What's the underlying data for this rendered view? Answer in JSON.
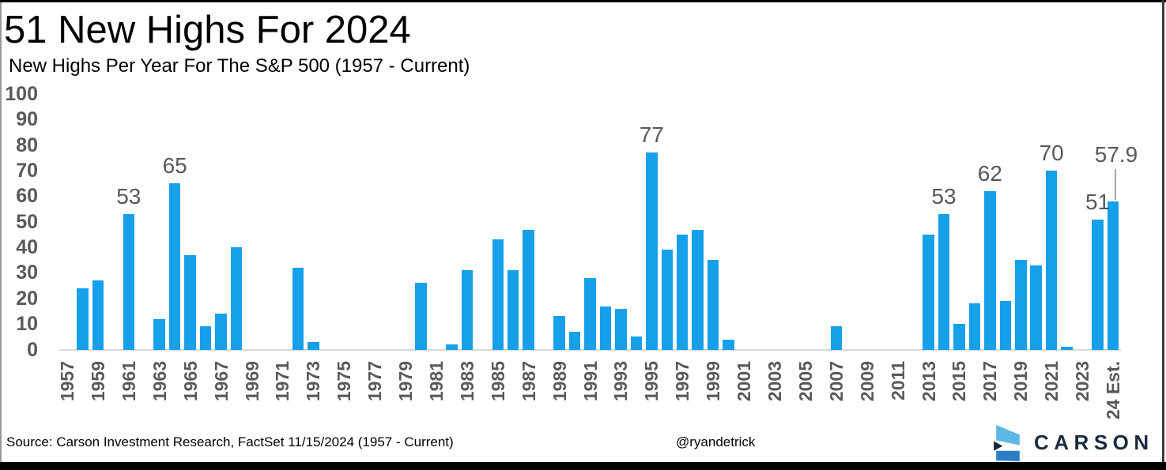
{
  "header": {
    "title": "51 New Highs For 2024",
    "subtitle": "New Highs Per Year For The S&P 500 (1957 - Current)"
  },
  "chart_data": {
    "type": "bar",
    "title": "51 New Highs For 2024",
    "subtitle": "New Highs Per Year For The S&P 500 (1957 - Current)",
    "xlabel": "",
    "ylabel": "",
    "ylim": [
      0,
      100
    ],
    "yticks": [
      0,
      10,
      20,
      30,
      40,
      50,
      60,
      70,
      80,
      90,
      100
    ],
    "grid": false,
    "legend_position": "none",
    "bar_color": "#17a0ea",
    "axis_line_color": "#d9d9d9",
    "tick_label_color": "#595959",
    "value_label_color": "#595959",
    "leader_line_color": "#a6a6a6",
    "categories": [
      "1957",
      "1958",
      "1959",
      "1960",
      "1961",
      "1962",
      "1963",
      "1964",
      "1965",
      "1966",
      "1967",
      "1968",
      "1969",
      "1970",
      "1971",
      "1972",
      "1973",
      "1974",
      "1975",
      "1976",
      "1977",
      "1978",
      "1979",
      "1980",
      "1981",
      "1982",
      "1983",
      "1984",
      "1985",
      "1986",
      "1987",
      "1988",
      "1989",
      "1990",
      "1991",
      "1992",
      "1993",
      "1994",
      "1995",
      "1996",
      "1997",
      "1998",
      "1999",
      "2000",
      "2001",
      "2002",
      "2003",
      "2004",
      "2005",
      "2006",
      "2007",
      "2008",
      "2009",
      "2010",
      "2011",
      "2012",
      "2013",
      "2014",
      "2015",
      "2016",
      "2017",
      "2018",
      "2019",
      "2020",
      "2021",
      "2022",
      "2023",
      "2024",
      "24 Est."
    ],
    "values": [
      0,
      24,
      27,
      0,
      53,
      0,
      12,
      65,
      37,
      9,
      14,
      40,
      0,
      0,
      0,
      32,
      3,
      0,
      0,
      0,
      0,
      0,
      0,
      26,
      0,
      2,
      31,
      0,
      43,
      31,
      47,
      0,
      13,
      7,
      28,
      17,
      16,
      5,
      77,
      39,
      45,
      47,
      35,
      4,
      0,
      0,
      0,
      0,
      0,
      0,
      9,
      0,
      0,
      0,
      0,
      0,
      45,
      53,
      10,
      18,
      62,
      19,
      35,
      33,
      70,
      1,
      0,
      51,
      57.9
    ],
    "annotations": [
      {
        "category": "1961",
        "label": "53"
      },
      {
        "category": "1964",
        "label": "65"
      },
      {
        "category": "1995",
        "label": "77"
      },
      {
        "category": "2014",
        "label": "53"
      },
      {
        "category": "2017",
        "label": "62"
      },
      {
        "category": "2021",
        "label": "70"
      },
      {
        "category": "2024",
        "label": "51"
      },
      {
        "category": "24 Est.",
        "label": "57.9",
        "leader_line": true
      }
    ]
  },
  "footer": {
    "source": "Source: Carson Investment Research, FactSet 11/15/2024 (1957 - Current)",
    "handle": "@ryandetrick",
    "logo": {
      "text": "CARSON",
      "colors": {
        "light": "#5eb8e7",
        "mid": "#2b7ec7",
        "dark": "#152a3c",
        "text": "#1b2b3e"
      }
    }
  }
}
